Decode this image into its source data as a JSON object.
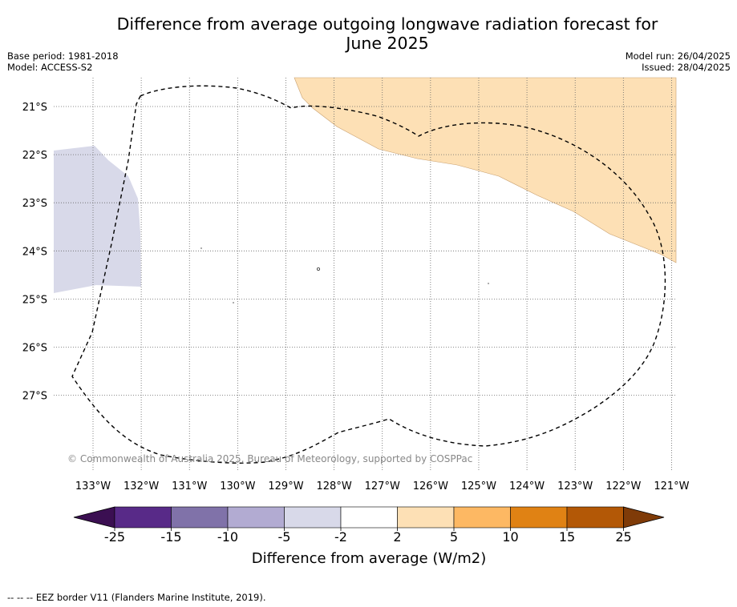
{
  "chart_data": {
    "type": "heatmap",
    "title": "Difference from average outgoing longwave radiation forecast for June 2025",
    "title_lines": [
      "Difference from average outgoing longwave radiation forecast for",
      "June 2025"
    ],
    "base_period": "Base period: 1981-2018",
    "model": "Model: ACCESS-S2",
    "model_run": "Model run: 26/04/2025",
    "issued": "Issued: 28/04/2025",
    "lon_ticks": [
      "133°W",
      "132°W",
      "131°W",
      "130°W",
      "129°W",
      "128°W",
      "127°W",
      "126°W",
      "125°W",
      "124°W",
      "123°W",
      "122°W",
      "121°W"
    ],
    "lat_ticks": [
      "21°S",
      "22°S",
      "23°S",
      "24°S",
      "25°S",
      "26°S",
      "27°S"
    ],
    "lon_range": [
      -133.8,
      -120.9
    ],
    "lat_range": [
      -28.4,
      -20.4
    ],
    "grid": true,
    "regions": [
      {
        "category": "2 to 5",
        "color": "#fde0b5",
        "location": "north-east"
      },
      {
        "category": "-5 to -2",
        "color": "#d8d9e9",
        "location": "west"
      }
    ],
    "copyright": "© Commonwealth of Australia 2025, Bureau of Meteorology, supported by COSPPac",
    "colorbar": {
      "label": "Difference from average (W/m2)",
      "tick_labels": [
        "-25",
        "-15",
        "-10",
        "-5",
        "-2",
        "2",
        "5",
        "10",
        "15",
        "25"
      ],
      "colors": [
        "#3b0f52",
        "#582a88",
        "#8072a9",
        "#b2abd2",
        "#d8d9e9",
        "#ffffff",
        "#fde0b5",
        "#fdb863",
        "#e08214",
        "#b35806",
        "#7f3b08"
      ]
    }
  },
  "footnote": "--  --  -- EEZ border V11 (Flanders Marine Institute, 2019)."
}
